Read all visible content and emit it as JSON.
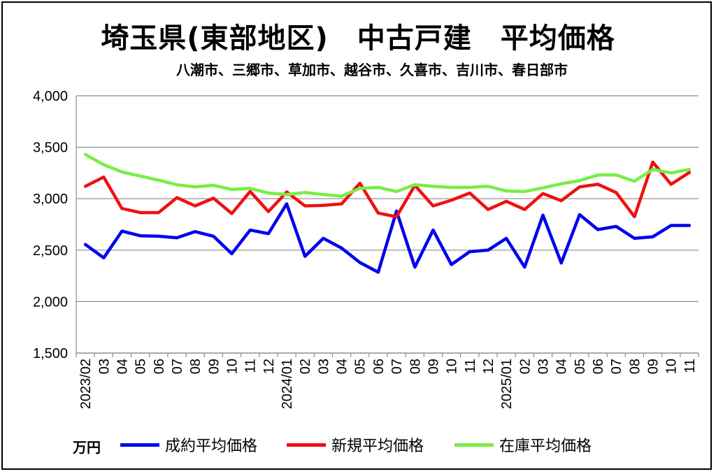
{
  "chart_data": {
    "type": "line",
    "title": "埼玉県(東部地区)　中古戸建　平均価格",
    "subtitle": "八潮市、三郷市、草加市、越谷市、久喜市、吉川市、春日部市",
    "unit_label": "万円",
    "ylim": [
      1500,
      4000
    ],
    "yticks": [
      "1,500",
      "2,000",
      "2,500",
      "3,000",
      "3,500",
      "4,000"
    ],
    "ytick_values": [
      1500,
      2000,
      2500,
      3000,
      3500,
      4000
    ],
    "grid": true,
    "legend_position": "bottom",
    "x": [
      "2023/02",
      "03",
      "04",
      "05",
      "06",
      "07",
      "08",
      "09",
      "10",
      "11",
      "12",
      "2024/01",
      "02",
      "03",
      "04",
      "05",
      "06",
      "07",
      "08",
      "09",
      "10",
      "11",
      "12",
      "2025/01",
      "02",
      "03",
      "04",
      "05",
      "06",
      "07",
      "08",
      "09",
      "10",
      "11"
    ],
    "series": [
      {
        "name": "成約平均価格",
        "color": "#0000ee",
        "values": [
          2555,
          2425,
          2685,
          2640,
          2635,
          2620,
          2680,
          2635,
          2465,
          2695,
          2660,
          2950,
          2440,
          2615,
          2520,
          2380,
          2285,
          2880,
          2335,
          2695,
          2360,
          2485,
          2500,
          2615,
          2335,
          2840,
          2375,
          2845,
          2700,
          2730,
          2615,
          2630,
          2740,
          2740
        ]
      },
      {
        "name": "新規平均価格",
        "color": "#ee1111",
        "values": [
          3120,
          3210,
          2905,
          2865,
          2865,
          3010,
          2930,
          3005,
          2855,
          3070,
          2875,
          3065,
          2930,
          2935,
          2950,
          3150,
          2860,
          2825,
          3130,
          2930,
          2985,
          3055,
          2895,
          2975,
          2895,
          3050,
          2980,
          3115,
          3140,
          3060,
          2825,
          3355,
          3140,
          3255
        ]
      },
      {
        "name": "在庫平均価格",
        "color": "#77ee44",
        "values": [
          3430,
          3330,
          3260,
          3220,
          3180,
          3135,
          3115,
          3130,
          3090,
          3100,
          3055,
          3040,
          3060,
          3040,
          3025,
          3100,
          3110,
          3070,
          3135,
          3120,
          3110,
          3110,
          3120,
          3075,
          3070,
          3105,
          3145,
          3175,
          3230,
          3230,
          3170,
          3285,
          3250,
          3285
        ]
      }
    ]
  }
}
